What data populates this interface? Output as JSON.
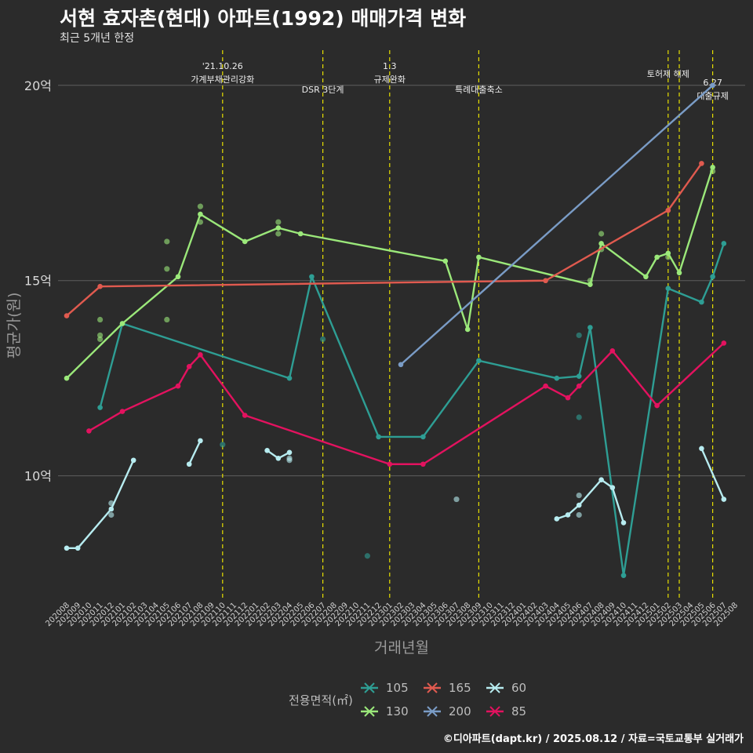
{
  "title": "서현 효자촌(현대) 아파트(1992) 매매가격 변화",
  "subtitle": "최근 5개년 한정",
  "caption": "©디아파트(dapt.kr) / 2025.08.12 / 자료=국토교통부 실거래가",
  "chart_data": {
    "type": "line",
    "xlabel": "거래년월",
    "ylabel": "평균가(원)",
    "ylim": [
      6.8,
      20.9
    ],
    "y_ticks": [
      {
        "value": 10,
        "label": "10억"
      },
      {
        "value": 15,
        "label": "15억"
      },
      {
        "value": 20,
        "label": "20억"
      }
    ],
    "x_ticks": [
      "202008",
      "202009",
      "202010",
      "202011",
      "202012",
      "202101",
      "202102",
      "202103",
      "202104",
      "202105",
      "202106",
      "202107",
      "202108",
      "202109",
      "202110",
      "202111",
      "202112",
      "202201",
      "202202",
      "202203",
      "202204",
      "202205",
      "202206",
      "202207",
      "202208",
      "202209",
      "202210",
      "202211",
      "202212",
      "202301",
      "202302",
      "202303",
      "202304",
      "202305",
      "202306",
      "202307",
      "202308",
      "202309",
      "202310",
      "202311",
      "202312",
      "202401",
      "202402",
      "202403",
      "202404",
      "202405",
      "202406",
      "202407",
      "202408",
      "202409",
      "202410",
      "202411",
      "202412",
      "202501",
      "202502",
      "202503",
      "202504",
      "202505",
      "202506",
      "202507",
      "202508"
    ],
    "grid": true,
    "legend_title": "전용면적(㎡)",
    "legend_position": "bottom",
    "series": [
      {
        "name": "105",
        "color": "#2e9e94",
        "line": [
          [
            "202011",
            11.75
          ],
          [
            "202101",
            13.9
          ],
          [
            "202204",
            12.5
          ],
          [
            "202206",
            15.1
          ],
          [
            "202212",
            11.0
          ],
          [
            "202304",
            11.0
          ],
          [
            "202309",
            12.95
          ],
          [
            "202404",
            12.5
          ],
          [
            "202406",
            12.55
          ],
          [
            "202407",
            13.8
          ],
          [
            "202410",
            7.45
          ],
          [
            "202502",
            14.8
          ],
          [
            "202505",
            14.45
          ],
          [
            "202506",
            15.1
          ],
          [
            "202507",
            15.95
          ]
        ],
        "points": [
          [
            "202207",
            13.5
          ],
          [
            "202211",
            7.95
          ],
          [
            "202406",
            11.5
          ],
          [
            "202406",
            13.6
          ],
          [
            "202110",
            10.8
          ]
        ]
      },
      {
        "name": "130",
        "color": "#9be87a",
        "line": [
          [
            "202008",
            12.5
          ],
          [
            "202101",
            13.9
          ],
          [
            "202106",
            15.1
          ],
          [
            "202108",
            16.7
          ],
          [
            "202112",
            16.0
          ],
          [
            "202203",
            16.35
          ],
          [
            "202205",
            16.2
          ],
          [
            "202306",
            15.5
          ],
          [
            "202308",
            13.75
          ],
          [
            "202309",
            15.6
          ],
          [
            "202407",
            14.9
          ],
          [
            "202408",
            15.95
          ],
          [
            "202412",
            15.1
          ],
          [
            "202501",
            15.6
          ],
          [
            "202502",
            15.7
          ],
          [
            "202503",
            15.2
          ],
          [
            "202506",
            17.9
          ]
        ],
        "points": [
          [
            "202011",
            14.0
          ],
          [
            "202011",
            13.5
          ],
          [
            "202011",
            13.6
          ],
          [
            "202105",
            16.0
          ],
          [
            "202105",
            15.3
          ],
          [
            "202105",
            14.0
          ],
          [
            "202108",
            16.5
          ],
          [
            "202108",
            16.9
          ],
          [
            "202203",
            16.2
          ],
          [
            "202203",
            16.5
          ],
          [
            "202407",
            15.0
          ],
          [
            "202408",
            16.2
          ],
          [
            "202408",
            15.8
          ],
          [
            "202502",
            15.6
          ],
          [
            "202506",
            17.8
          ]
        ]
      },
      {
        "name": "165",
        "color": "#e05a4f",
        "line": [
          [
            "202008",
            14.1
          ],
          [
            "202011",
            14.85
          ],
          [
            "202403",
            15.0
          ],
          [
            "202502",
            16.8
          ],
          [
            "202505",
            18.0
          ]
        ],
        "points": []
      },
      {
        "name": "200",
        "color": "#7a9cc6",
        "line": [
          [
            "202302",
            12.85
          ],
          [
            "202506",
            20.0
          ]
        ],
        "points": []
      },
      {
        "name": "60",
        "color": "#b7ecf0",
        "line": [
          [
            "202008",
            8.15
          ],
          [
            "202009",
            8.15
          ],
          [
            "202012",
            9.15
          ],
          [
            "202102",
            10.4
          ]
        ],
        "line2": [
          [
            "202107",
            10.3
          ],
          [
            "202108",
            10.9
          ]
        ],
        "line3": [
          [
            "202202",
            10.65
          ],
          [
            "202203",
            10.45
          ],
          [
            "202204",
            10.6
          ]
        ],
        "line4": [
          [
            "202404",
            8.9
          ],
          [
            "202405",
            9.0
          ],
          [
            "202406",
            9.25
          ],
          [
            "202408",
            9.9
          ],
          [
            "202409",
            9.7
          ],
          [
            "202410",
            8.8
          ]
        ],
        "line5": [
          [
            "202505",
            10.7
          ],
          [
            "202507",
            9.4
          ]
        ],
        "points": [
          [
            "202012",
            9.3
          ],
          [
            "202012",
            9.0
          ],
          [
            "202204",
            10.45
          ],
          [
            "202204",
            10.4
          ],
          [
            "202307",
            9.4
          ],
          [
            "202406",
            9.5
          ],
          [
            "202406",
            9.0
          ]
        ]
      },
      {
        "name": "85",
        "color": "#e3125f",
        "line": [
          [
            "202010",
            11.15
          ],
          [
            "202101",
            11.65
          ],
          [
            "202106",
            12.3
          ],
          [
            "202107",
            12.8
          ],
          [
            "202108",
            13.1
          ],
          [
            "202112",
            11.55
          ],
          [
            "202301",
            10.3
          ],
          [
            "202304",
            10.3
          ],
          [
            "202403",
            12.3
          ],
          [
            "202405",
            12.0
          ],
          [
            "202406",
            12.3
          ],
          [
            "202409",
            13.2
          ],
          [
            "202501",
            11.8
          ],
          [
            "202507",
            13.4
          ]
        ],
        "points": []
      }
    ],
    "annotations": [
      {
        "x": "202110",
        "lines": [
          "'21.10.26",
          "가계부채관리강화"
        ]
      },
      {
        "x": "202207",
        "lines": [
          "DSR 3단계"
        ]
      },
      {
        "x": "202301",
        "lines": [
          "1.3",
          "규제완화"
        ]
      },
      {
        "x": "202309",
        "lines": [
          "특례대출축소"
        ]
      },
      {
        "x": "202502",
        "lines": [
          "토허제 해제"
        ]
      },
      {
        "x": "202503",
        "lines": []
      },
      {
        "x": "202506",
        "lines": [
          "6.27",
          "대출규제"
        ]
      }
    ]
  }
}
